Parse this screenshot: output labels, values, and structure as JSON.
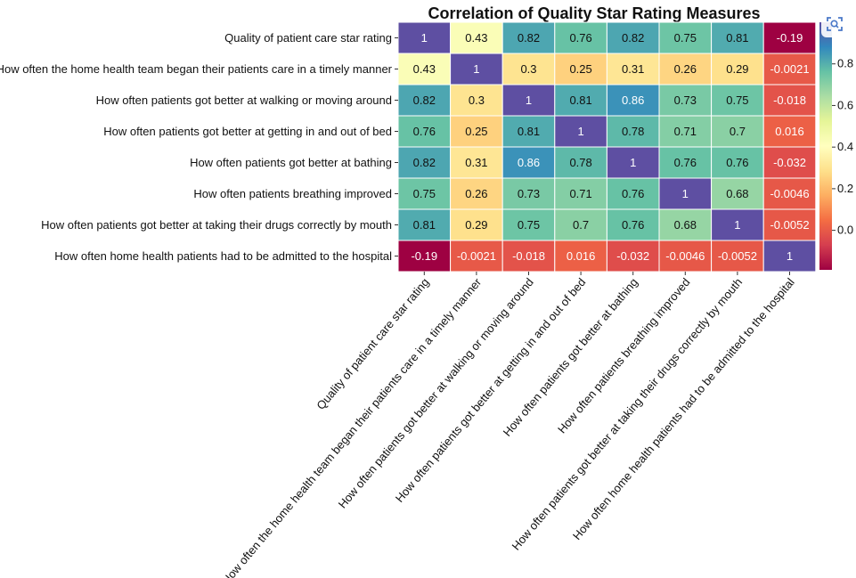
{
  "chart_data": {
    "type": "heatmap",
    "title": "Correlation of Quality Star Rating Measures",
    "labels": [
      "Quality of patient care star rating",
      "How often the home health team began their patients care in a timely manner",
      "How often patients got better at walking or moving around",
      "How often patients got better at getting in and out of bed",
      "How often patients got better at bathing",
      "How often patients breathing improved",
      "How often patients got better at taking their drugs correctly by mouth",
      "How often home health patients had to be admitted to the hospital"
    ],
    "values": [
      [
        1,
        0.43,
        0.82,
        0.76,
        0.82,
        0.75,
        0.81,
        -0.19
      ],
      [
        0.43,
        1,
        0.3,
        0.25,
        0.31,
        0.26,
        0.29,
        -0.0021
      ],
      [
        0.82,
        0.3,
        1,
        0.81,
        0.86,
        0.73,
        0.75,
        -0.018
      ],
      [
        0.76,
        0.25,
        0.81,
        1,
        0.78,
        0.71,
        0.7,
        0.016
      ],
      [
        0.82,
        0.31,
        0.86,
        0.78,
        1,
        0.76,
        0.76,
        -0.032
      ],
      [
        0.75,
        0.26,
        0.73,
        0.71,
        0.76,
        1,
        0.68,
        -0.0046
      ],
      [
        0.81,
        0.29,
        0.75,
        0.7,
        0.76,
        0.68,
        1,
        -0.0052
      ],
      [
        -0.19,
        -0.0021,
        -0.018,
        0.016,
        -0.032,
        -0.0046,
        -0.0052,
        1
      ]
    ],
    "value_labels": [
      [
        "1",
        "0.43",
        "0.82",
        "0.76",
        "0.82",
        "0.75",
        "0.81",
        "-0.19"
      ],
      [
        "0.43",
        "1",
        "0.3",
        "0.25",
        "0.31",
        "0.26",
        "0.29",
        "-0.0021"
      ],
      [
        "0.82",
        "0.3",
        "1",
        "0.81",
        "0.86",
        "0.73",
        "0.75",
        "-0.018"
      ],
      [
        "0.76",
        "0.25",
        "0.81",
        "1",
        "0.78",
        "0.71",
        "0.7",
        "0.016"
      ],
      [
        "0.82",
        "0.31",
        "0.86",
        "0.78",
        "1",
        "0.76",
        "0.76",
        "-0.032"
      ],
      [
        "0.75",
        "0.26",
        "0.73",
        "0.71",
        "0.76",
        "1",
        "0.68",
        "-0.0046"
      ],
      [
        "0.81",
        "0.29",
        "0.75",
        "0.7",
        "0.76",
        "0.68",
        "1",
        "-0.0052"
      ],
      [
        "-0.19",
        "-0.0021",
        "-0.018",
        "0.016",
        "-0.032",
        "-0.0046",
        "-0.0052",
        "1"
      ]
    ],
    "colormap": "Spectral",
    "vmin": -0.19,
    "vmax": 1,
    "colorbar_ticks": [
      0.0,
      0.2,
      0.4,
      0.6,
      0.8
    ],
    "colorbar_tick_labels": [
      "0.0",
      "0.2",
      "0.4",
      "0.6",
      "0.8"
    ],
    "grid": false,
    "annotations": true
  },
  "toolbar": {
    "icon": "zoom-scan-icon"
  }
}
